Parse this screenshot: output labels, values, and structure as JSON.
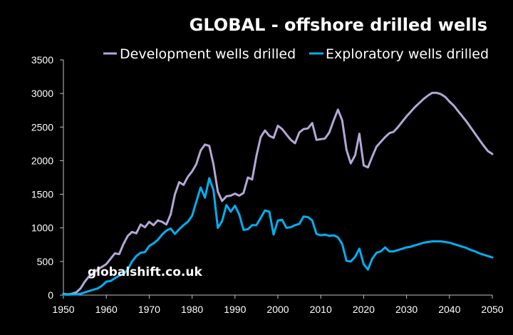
{
  "chart_data": {
    "type": "line",
    "title": "GLOBAL - offshore drilled wells",
    "xlabel": "",
    "ylabel": "",
    "xlim": [
      1950,
      2050
    ],
    "ylim": [
      0,
      3500
    ],
    "x_ticks": [
      1950,
      1960,
      1970,
      1980,
      1990,
      2000,
      2010,
      2020,
      2030,
      2040,
      2050
    ],
    "y_ticks": [
      0,
      500,
      1000,
      1500,
      2000,
      2500,
      3000,
      3500
    ],
    "grid": false,
    "legend_position": "top",
    "watermark": "globalshift.co.uk",
    "series": [
      {
        "name": "Development wells drilled",
        "color": "#b4a7d6",
        "x": [
          1950,
          1951,
          1952,
          1953,
          1954,
          1955,
          1956,
          1957,
          1958,
          1959,
          1960,
          1961,
          1962,
          1963,
          1964,
          1965,
          1966,
          1967,
          1968,
          1969,
          1970,
          1971,
          1972,
          1973,
          1974,
          1975,
          1976,
          1977,
          1978,
          1979,
          1980,
          1981,
          1982,
          1983,
          1984,
          1985,
          1986,
          1987,
          1988,
          1989,
          1990,
          1991,
          1992,
          1993,
          1994,
          1995,
          1996,
          1997,
          1998,
          1999,
          2000,
          2001,
          2002,
          2003,
          2004,
          2005,
          2006,
          2007,
          2008,
          2009,
          2010,
          2011,
          2012,
          2013,
          2014,
          2015,
          2016,
          2017,
          2018,
          2019,
          2020,
          2021,
          2022,
          2023,
          2024,
          2025,
          2026,
          2027,
          2028,
          2029,
          2030,
          2031,
          2032,
          2033,
          2034,
          2035,
          2036,
          2037,
          2038,
          2039,
          2040,
          2041,
          2042,
          2043,
          2044,
          2045,
          2046,
          2047,
          2048,
          2049,
          2050
        ],
        "values": [
          20,
          10,
          20,
          40,
          100,
          200,
          280,
          330,
          380,
          420,
          460,
          540,
          620,
          610,
          760,
          880,
          940,
          920,
          1050,
          1010,
          1090,
          1040,
          1110,
          1090,
          1050,
          1200,
          1500,
          1680,
          1640,
          1760,
          1840,
          1950,
          2150,
          2240,
          2220,
          1940,
          1540,
          1400,
          1470,
          1480,
          1510,
          1480,
          1520,
          1750,
          1720,
          2070,
          2350,
          2450,
          2370,
          2340,
          2520,
          2470,
          2390,
          2310,
          2260,
          2420,
          2470,
          2480,
          2560,
          2310,
          2320,
          2330,
          2420,
          2600,
          2760,
          2600,
          2160,
          1960,
          2080,
          2400,
          1930,
          1900,
          2060,
          2210,
          2280,
          2350,
          2410,
          2430,
          2500,
          2580,
          2660,
          2730,
          2800,
          2860,
          2920,
          2970,
          3010,
          3010,
          2990,
          2950,
          2880,
          2820,
          2740,
          2660,
          2580,
          2490,
          2400,
          2310,
          2220,
          2140,
          2100
        ]
      },
      {
        "name": "Exploratory wells drilled",
        "color": "#00b0f0",
        "x": [
          1950,
          1951,
          1952,
          1953,
          1954,
          1955,
          1956,
          1957,
          1958,
          1959,
          1960,
          1961,
          1962,
          1963,
          1964,
          1965,
          1966,
          1967,
          1968,
          1969,
          1970,
          1971,
          1972,
          1973,
          1974,
          1975,
          1976,
          1977,
          1978,
          1979,
          1980,
          1981,
          1982,
          1983,
          1984,
          1985,
          1986,
          1987,
          1988,
          1989,
          1990,
          1991,
          1992,
          1993,
          1994,
          1995,
          1996,
          1997,
          1998,
          1999,
          2000,
          2001,
          2002,
          2003,
          2004,
          2005,
          2006,
          2007,
          2008,
          2009,
          2010,
          2011,
          2012,
          2013,
          2014,
          2015,
          2016,
          2017,
          2018,
          2019,
          2020,
          2021,
          2022,
          2023,
          2024,
          2025,
          2026,
          2027,
          2028,
          2029,
          2030,
          2031,
          2032,
          2033,
          2034,
          2035,
          2036,
          2037,
          2038,
          2039,
          2040,
          2041,
          2042,
          2043,
          2044,
          2045,
          2046,
          2047,
          2048,
          2049,
          2050
        ],
        "values": [
          10,
          5,
          10,
          10,
          20,
          40,
          60,
          80,
          100,
          140,
          200,
          210,
          250,
          290,
          310,
          380,
          500,
          580,
          630,
          640,
          730,
          770,
          820,
          900,
          960,
          990,
          910,
          980,
          1040,
          1090,
          1180,
          1390,
          1600,
          1450,
          1740,
          1560,
          1000,
          1100,
          1340,
          1240,
          1330,
          1200,
          970,
          980,
          1040,
          1040,
          1150,
          1260,
          1240,
          900,
          1110,
          1120,
          1000,
          1010,
          1040,
          1060,
          1170,
          1160,
          1110,
          910,
          890,
          900,
          880,
          890,
          860,
          760,
          510,
          500,
          570,
          690,
          460,
          380,
          540,
          630,
          650,
          710,
          650,
          650,
          670,
          690,
          710,
          720,
          740,
          760,
          780,
          790,
          800,
          800,
          800,
          790,
          780,
          760,
          740,
          720,
          700,
          670,
          650,
          620,
          600,
          580,
          560
        ]
      }
    ]
  }
}
